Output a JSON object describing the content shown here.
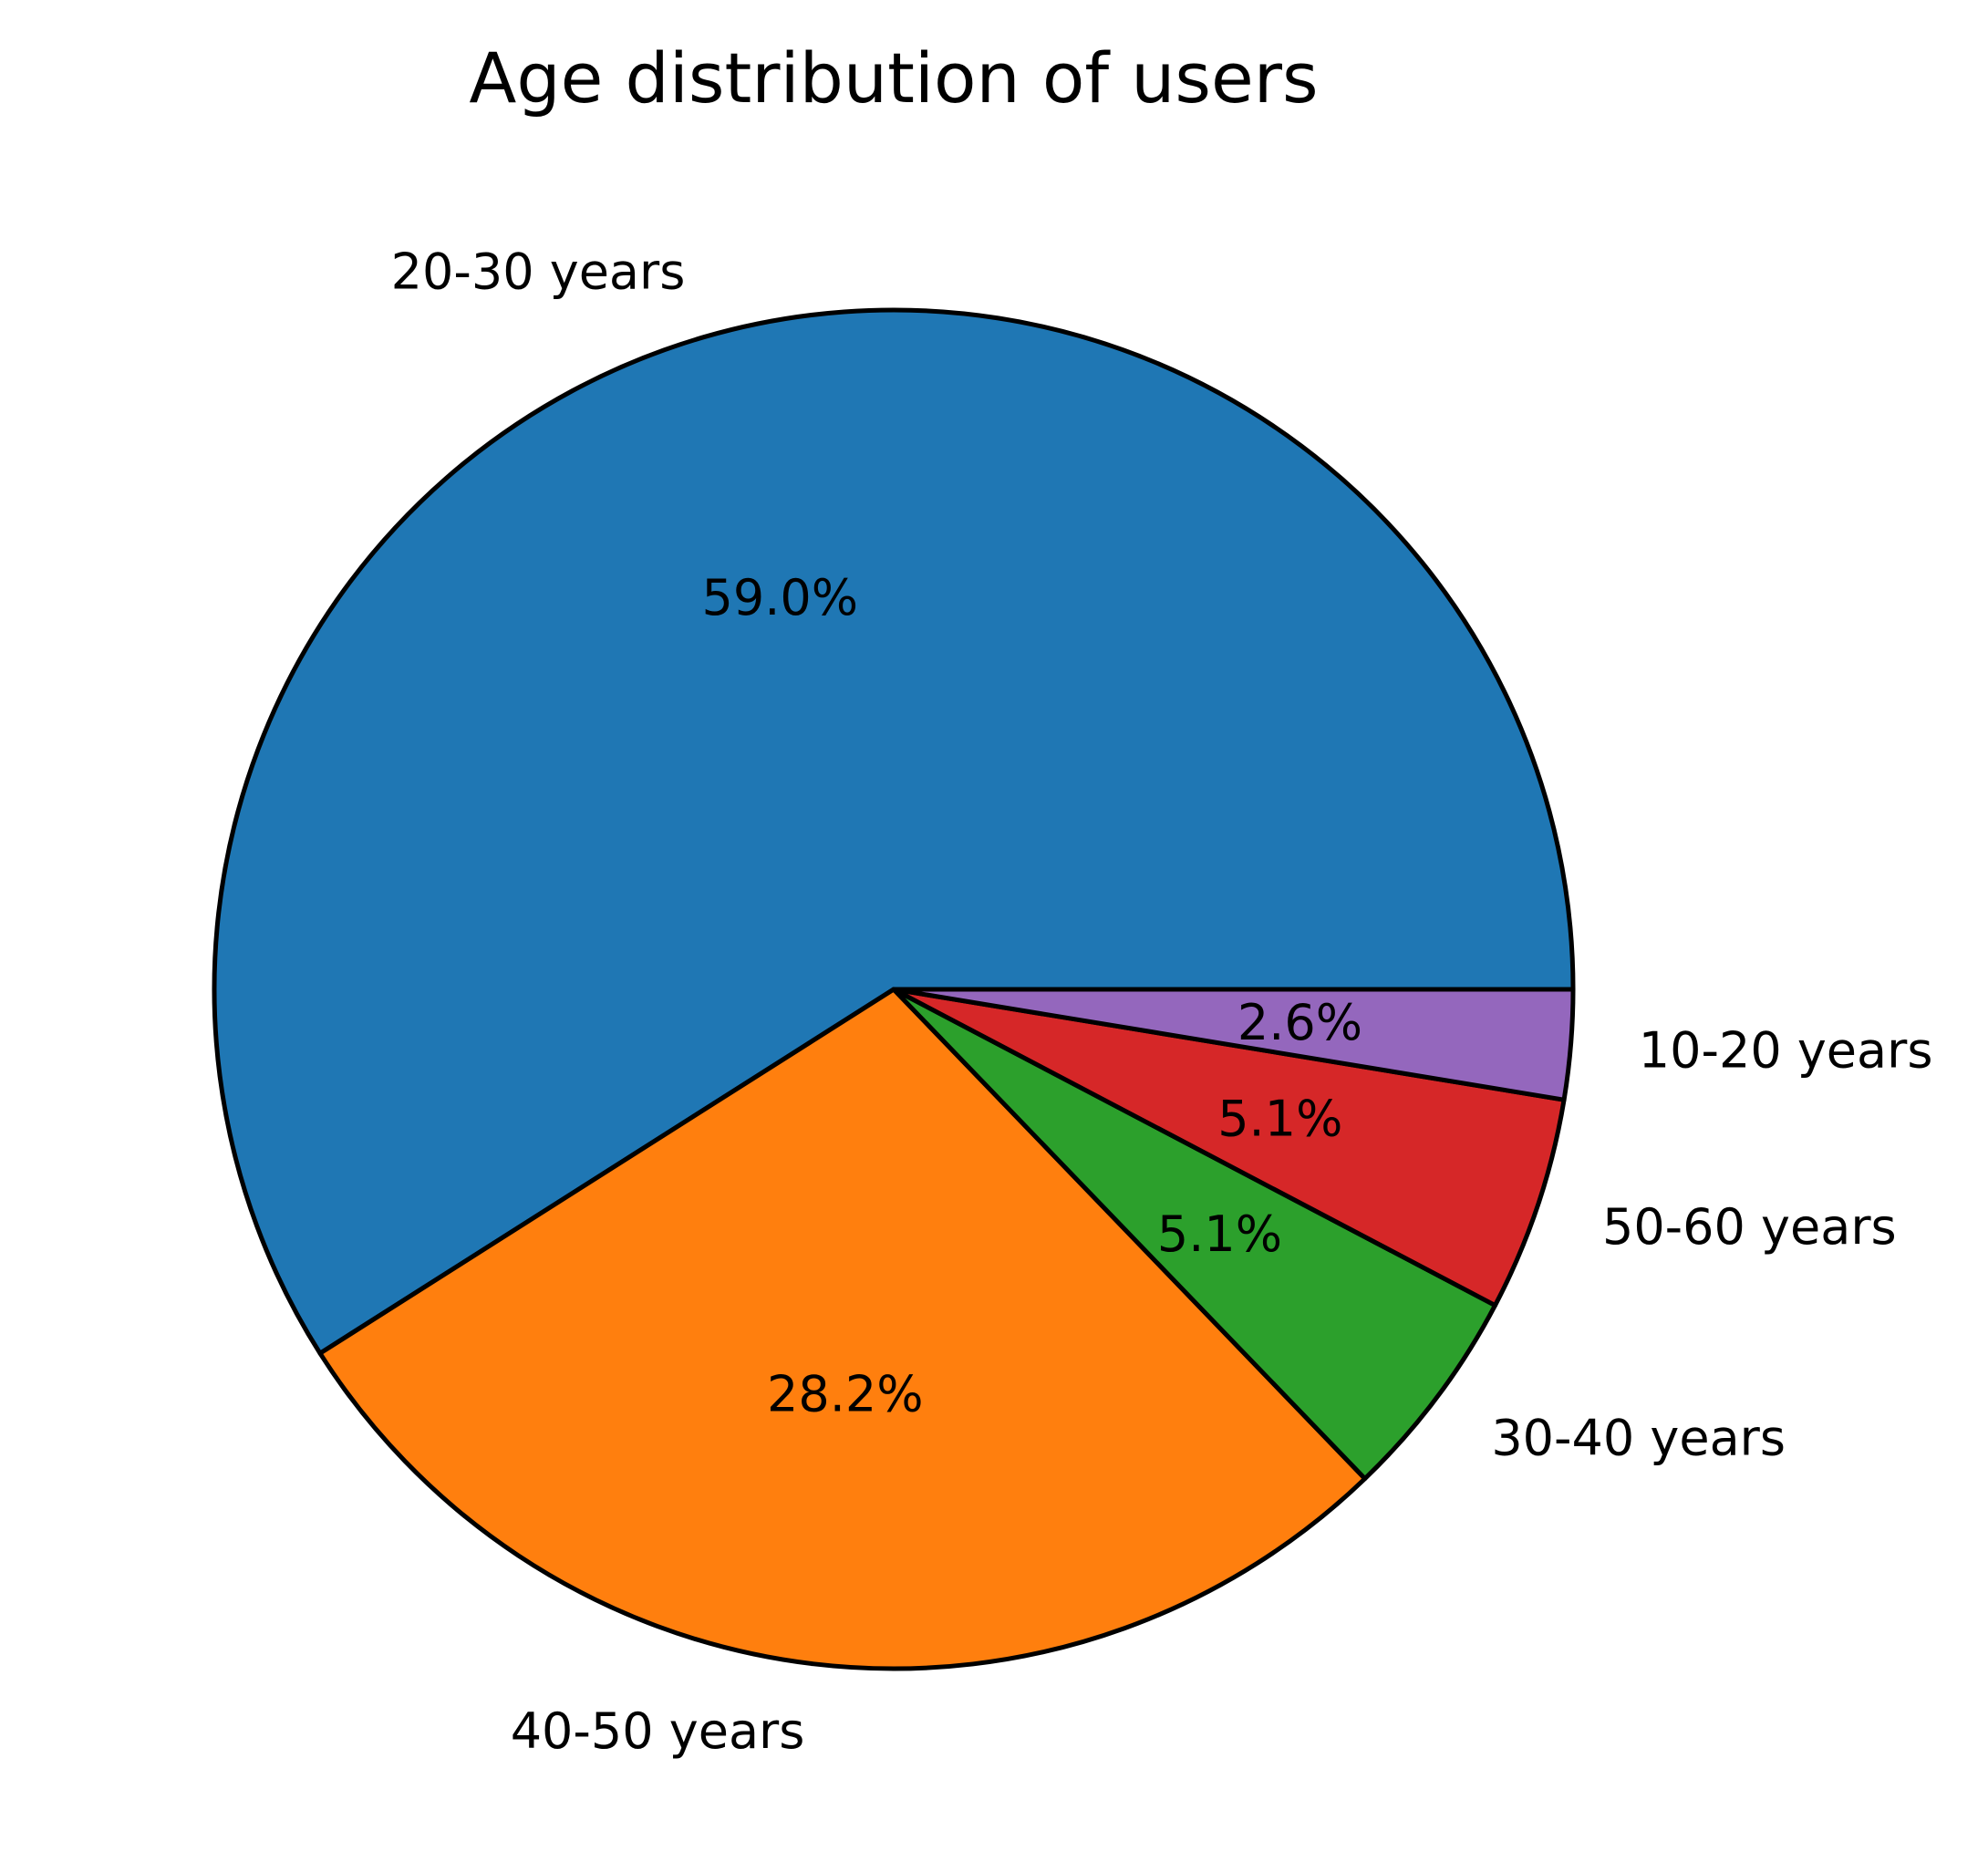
{
  "chart_data": {
    "type": "pie",
    "title": "Age distribution of users",
    "start_angle_deg": 0,
    "direction": "counterclockwise",
    "slices": [
      {
        "label": "20-30 years",
        "value": 59.0,
        "pct_label": "59.0%",
        "color": "#1f77b4"
      },
      {
        "label": "40-50 years",
        "value": 28.2,
        "pct_label": "28.2%",
        "color": "#ff7f0e"
      },
      {
        "label": "30-40 years",
        "value": 5.1,
        "pct_label": "5.1%",
        "color": "#2ca02c"
      },
      {
        "label": "50-60 years",
        "value": 5.1,
        "pct_label": "5.1%",
        "color": "#d62728"
      },
      {
        "label": "10-20 years",
        "value": 2.6,
        "pct_label": "2.6%",
        "color": "#9467bd"
      }
    ]
  }
}
